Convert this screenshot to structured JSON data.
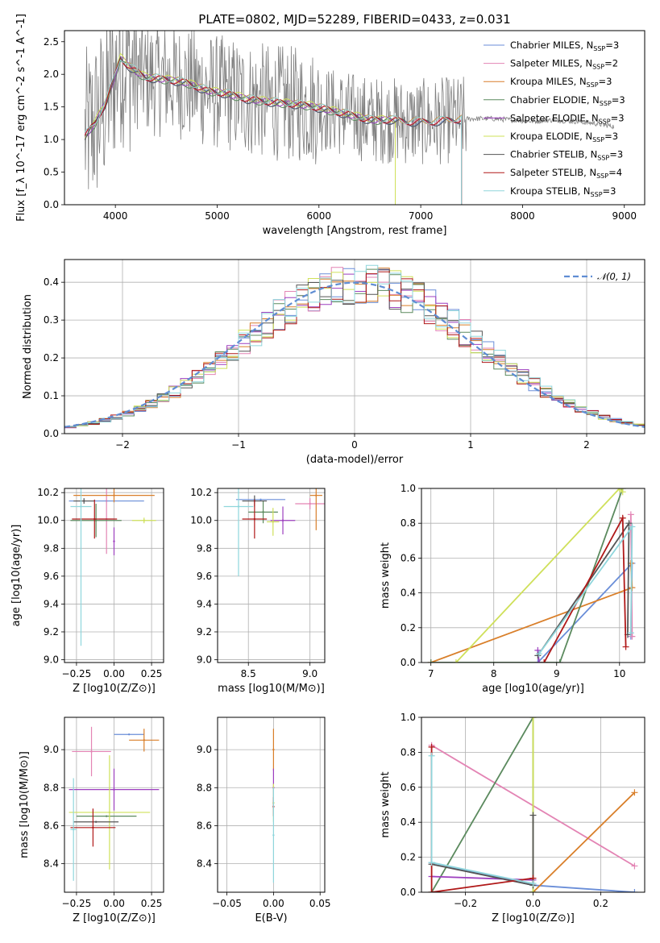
{
  "figure_title": "PLATE=0802, MJD=52289, FIBERID=0433, z=0.031",
  "models": [
    {
      "name": "Chabrier MILES",
      "nssp": "3",
      "color": "#6a8ed8"
    },
    {
      "name": "Salpeter MILES",
      "nssp": "2",
      "color": "#e384b4"
    },
    {
      "name": "Kroupa MILES",
      "nssp": "3",
      "color": "#d97f2a"
    },
    {
      "name": "Chabrier ELODIE",
      "nssp": "3",
      "color": "#5b8a5e"
    },
    {
      "name": "Salpeter ELODIE",
      "nssp": "3",
      "color": "#9d3fbf"
    },
    {
      "name": "Kroupa ELODIE",
      "nssp": "3",
      "color": "#cfe05a"
    },
    {
      "name": "Chabrier STELIB",
      "nssp": "3",
      "color": "#555555"
    },
    {
      "name": "Salpeter STELIB",
      "nssp": "4",
      "color": "#b01818"
    },
    {
      "name": "Kroupa STELIB",
      "nssp": "3",
      "color": "#8fd6dc"
    }
  ],
  "chart_data": [
    {
      "type": "line",
      "panel": "spectrum",
      "xlabel": "wavelength [Angstrom, rest frame]",
      "ylabel": "Flux [f_λ 10^-17 erg cm^-2 s^-1 A^-1]",
      "xlim": [
        3500,
        9200
      ],
      "ylim": [
        0,
        2.67
      ],
      "xticks": [
        4000,
        5000,
        6000,
        7000,
        8000,
        9000
      ],
      "yticks": [
        0.0,
        0.5,
        1.0,
        1.5,
        2.0,
        2.5
      ],
      "legend_position": "top-right",
      "data_series": {
        "name": "data",
        "color": "#808080"
      },
      "continuum_x": [
        3700,
        3800,
        3900,
        3980,
        4050,
        4150,
        4300,
        4500,
        4700,
        4900,
        5100,
        5300,
        5500,
        5700,
        5900,
        6100,
        6300,
        6500,
        6700,
        6900,
        7100,
        7300,
        7500,
        7700,
        7900,
        8100,
        8300,
        8500,
        8700,
        8900
      ],
      "continuum_y": [
        1.05,
        1.25,
        1.55,
        1.9,
        2.25,
        2.1,
        1.95,
        1.92,
        1.87,
        1.75,
        1.7,
        1.62,
        1.58,
        1.55,
        1.52,
        1.45,
        1.38,
        1.3,
        1.3,
        1.27,
        1.27,
        1.3,
        1.32,
        1.32,
        1.3,
        1.28,
        1.3,
        1.28,
        1.25,
        1.2
      ],
      "model_end_x": [
        7400,
        7400,
        7400,
        6750,
        6750,
        6750,
        7400,
        7400,
        7400
      ]
    },
    {
      "type": "line",
      "panel": "residuals",
      "xlabel": "(data-model)/error",
      "ylabel": "Normed distribution",
      "xlim": [
        -2.5,
        2.5
      ],
      "ylim": [
        0,
        0.46
      ],
      "xticks": [
        -2,
        -1,
        0,
        1,
        2
      ],
      "yticks": [
        0.0,
        0.1,
        0.2,
        0.3,
        0.4
      ],
      "reference": {
        "name": "𝒩(0, 1)",
        "color": "#5f8dd3"
      },
      "legend_position": "top-right",
      "bin_width": 0.1
    },
    {
      "type": "scatter",
      "panel": "age_vs_Z",
      "xlabel": "Z [log10(Z/Z⊙)]",
      "ylabel": "age [log10(age/yr)]",
      "xlim": [
        -0.33,
        0.33
      ],
      "ylim": [
        8.98,
        10.23
      ],
      "xticks": [
        -0.25,
        0.0,
        0.25
      ],
      "yticks": [
        9.0,
        9.2,
        9.4,
        9.6,
        9.8,
        10.0,
        10.2
      ],
      "points": [
        {
          "model": 0,
          "x": -0.05,
          "y": 10.14,
          "xe": 0.25,
          "ye": 0.0
        },
        {
          "model": 1,
          "x": -0.05,
          "y": 10.01,
          "xe": 0.05,
          "ye": 0.25
        },
        {
          "model": 2,
          "x": 0.0,
          "y": 10.18,
          "xe": 0.27,
          "ye": 0.05
        },
        {
          "model": 3,
          "x": -0.12,
          "y": 10.0,
          "xe": 0.17,
          "ye": 0.12
        },
        {
          "model": 4,
          "x": 0.0,
          "y": 9.85,
          "xe": 0.0,
          "ye": 0.1
        },
        {
          "model": 5,
          "x": 0.2,
          "y": 10.0,
          "xe": 0.08,
          "ye": 0.02
        },
        {
          "model": 6,
          "x": -0.2,
          "y": 10.14,
          "xe": 0.07,
          "ye": 0.02
        },
        {
          "model": 7,
          "x": -0.13,
          "y": 10.01,
          "xe": 0.15,
          "ye": 0.14
        },
        {
          "model": 8,
          "x": -0.22,
          "y": 10.1,
          "xe": 0.07,
          "ye": 1.0
        }
      ]
    },
    {
      "type": "scatter",
      "panel": "age_vs_mass",
      "xlabel": "mass [log10(M/M⊙)]",
      "ylabel": "",
      "xlim": [
        8.25,
        9.12
      ],
      "ylim": [
        8.98,
        10.23
      ],
      "xticks": [
        8.5,
        9.0
      ],
      "yticks": [
        9.0,
        9.2,
        9.4,
        9.6,
        9.8,
        10.0,
        10.2
      ],
      "points": [
        {
          "model": 0,
          "x": 8.6,
          "y": 10.15,
          "xe": 0.2,
          "ye": 0.0
        },
        {
          "model": 1,
          "x": 9.0,
          "y": 10.12,
          "xe": 0.12,
          "ye": 0.04
        },
        {
          "model": 2,
          "x": 9.05,
          "y": 10.18,
          "xe": 0.05,
          "ye": 0.25
        },
        {
          "model": 3,
          "x": 8.62,
          "y": 10.06,
          "xe": 0.12,
          "ye": 0.08
        },
        {
          "model": 4,
          "x": 8.78,
          "y": 10.0,
          "xe": 0.1,
          "ye": 0.1
        },
        {
          "model": 5,
          "x": 8.7,
          "y": 9.99,
          "xe": 0.05,
          "ye": 0.1
        },
        {
          "model": 6,
          "x": 8.55,
          "y": 10.14,
          "xe": 0.1,
          "ye": 0.04
        },
        {
          "model": 7,
          "x": 8.55,
          "y": 10.01,
          "xe": 0.1,
          "ye": 0.14
        },
        {
          "model": 8,
          "x": 8.42,
          "y": 10.1,
          "xe": 0.12,
          "ye": 0.5
        }
      ]
    },
    {
      "type": "line",
      "panel": "weight_vs_age",
      "xlabel": "age [log10(age/yr)]",
      "ylabel": "mass weight",
      "xlim": [
        6.85,
        10.4
      ],
      "ylim": [
        0,
        1
      ],
      "xticks": [
        7,
        8,
        9,
        10
      ],
      "yticks": [
        0.0,
        0.2,
        0.4,
        0.6,
        0.8,
        1.0
      ],
      "series": [
        {
          "model": 0,
          "x": [
            8.7,
            10.2,
            10.18
          ],
          "y": [
            0.0,
            0.57,
            0.15
          ]
        },
        {
          "model": 1,
          "x": [
            10.18,
            10.2
          ],
          "y": [
            0.85,
            0.15
          ]
        },
        {
          "model": 2,
          "x": [
            7.0,
            10.2,
            10.18
          ],
          "y": [
            0.0,
            0.43,
            0.57
          ]
        },
        {
          "model": 3,
          "x": [
            7.0,
            9.05,
            10.05
          ],
          "y": [
            0.0,
            0.0,
            1.0
          ]
        },
        {
          "model": 4,
          "x": [
            8.7,
            8.72
          ],
          "y": [
            0.07,
            0.0
          ]
        },
        {
          "model": 5,
          "x": [
            7.4,
            10.0,
            10.05
          ],
          "y": [
            0.0,
            1.0,
            0.98
          ]
        },
        {
          "model": 6,
          "x": [
            8.7,
            10.15,
            10.13
          ],
          "y": [
            0.04,
            0.8,
            0.16
          ]
        },
        {
          "model": 7,
          "x": [
            8.8,
            10.05,
            10.1
          ],
          "y": [
            0.0,
            0.83,
            0.09
          ]
        },
        {
          "model": 8,
          "x": [
            8.72,
            10.2,
            10.18
          ],
          "y": [
            0.05,
            0.78,
            0.17
          ]
        }
      ]
    },
    {
      "type": "scatter",
      "panel": "mass_vs_Z",
      "xlabel": "Z [log10(Z/Z⊙)]",
      "ylabel": "mass [log10(M/M⊙)]",
      "xlim": [
        -0.33,
        0.33
      ],
      "ylim": [
        8.25,
        9.17
      ],
      "xticks": [
        -0.25,
        0.0,
        0.25
      ],
      "yticks": [
        8.4,
        8.6,
        8.8,
        9.0
      ],
      "points": [
        {
          "model": 0,
          "x": 0.1,
          "y": 9.08,
          "xe": 0.1,
          "ye": 0.0
        },
        {
          "model": 1,
          "x": -0.15,
          "y": 8.99,
          "xe": 0.13,
          "ye": 0.13
        },
        {
          "model": 2,
          "x": 0.2,
          "y": 9.05,
          "xe": 0.1,
          "ye": 0.06
        },
        {
          "model": 3,
          "x": -0.05,
          "y": 8.65,
          "xe": 0.2,
          "ye": 0.0
        },
        {
          "model": 4,
          "x": 0.0,
          "y": 8.79,
          "xe": 0.3,
          "ye": 0.11
        },
        {
          "model": 5,
          "x": -0.03,
          "y": 8.67,
          "xe": 0.27,
          "ye": 0.3
        },
        {
          "model": 6,
          "x": -0.12,
          "y": 8.62,
          "xe": 0.15,
          "ye": 0.0
        },
        {
          "model": 7,
          "x": -0.14,
          "y": 8.59,
          "xe": 0.15,
          "ye": 0.1
        },
        {
          "model": 8,
          "x": -0.27,
          "y": 8.58,
          "xe": 0.02,
          "ye": 0.27
        }
      ]
    },
    {
      "type": "scatter",
      "panel": "mass_vs_ebv",
      "xlabel": "E(B-V)",
      "ylabel": "",
      "xlim": [
        -0.06,
        0.055
      ],
      "ylim": [
        8.25,
        9.17
      ],
      "xticks": [
        -0.05,
        0.0,
        0.05
      ],
      "yticks": [
        8.4,
        8.6,
        8.8,
        9.0
      ],
      "points": [
        {
          "model": 2,
          "x": 0.0,
          "y": 9.0,
          "xe": 0.0,
          "ye": 0.11
        },
        {
          "model": 4,
          "x": 0.0,
          "y": 8.8,
          "xe": 0.0,
          "ye": 0.1
        },
        {
          "model": 5,
          "x": 0.0,
          "y": 8.72,
          "xe": 0.0,
          "ye": 0.1
        },
        {
          "model": 7,
          "x": 0.0,
          "y": 8.7,
          "xe": 0.0,
          "ye": 0.05
        },
        {
          "model": 8,
          "x": 0.0,
          "y": 8.55,
          "xe": 0.0,
          "ye": 0.25
        }
      ]
    },
    {
      "type": "line",
      "panel": "weight_vs_Z",
      "xlabel": "Z [log10(Z/Z⊙)]",
      "ylabel": "mass weight",
      "xlim": [
        -0.33,
        0.33
      ],
      "ylim": [
        0,
        1
      ],
      "xticks": [
        -0.2,
        0.0,
        0.2
      ],
      "yticks": [
        0.0,
        0.2,
        0.4,
        0.6,
        0.8,
        1.0
      ],
      "series": [
        {
          "model": 0,
          "x": [
            -0.3,
            0.0,
            0.3
          ],
          "y": [
            0.17,
            0.04,
            0.0
          ]
        },
        {
          "model": 1,
          "x": [
            -0.3,
            0.3
          ],
          "y": [
            0.84,
            0.15
          ]
        },
        {
          "model": 2,
          "x": [
            0.0,
            0.3
          ],
          "y": [
            0.0,
            0.57
          ]
        },
        {
          "model": 3,
          "x": [
            -0.3,
            0.0,
            0.0
          ],
          "y": [
            0.0,
            1.0,
            0.0
          ]
        },
        {
          "model": 4,
          "x": [
            -0.3,
            0.0
          ],
          "y": [
            0.09,
            0.07
          ]
        },
        {
          "model": 5,
          "x": [
            0.0,
            0.0
          ],
          "y": [
            1.0,
            0.0
          ]
        },
        {
          "model": 6,
          "x": [
            -0.3,
            0.0,
            0.0
          ],
          "y": [
            0.16,
            0.04,
            0.44
          ]
        },
        {
          "model": 7,
          "x": [
            -0.3,
            -0.3,
            0.0
          ],
          "y": [
            0.83,
            0.0,
            0.08
          ]
        },
        {
          "model": 8,
          "x": [
            -0.3,
            -0.3,
            0.0
          ],
          "y": [
            0.78,
            0.17,
            0.05
          ]
        }
      ]
    }
  ]
}
